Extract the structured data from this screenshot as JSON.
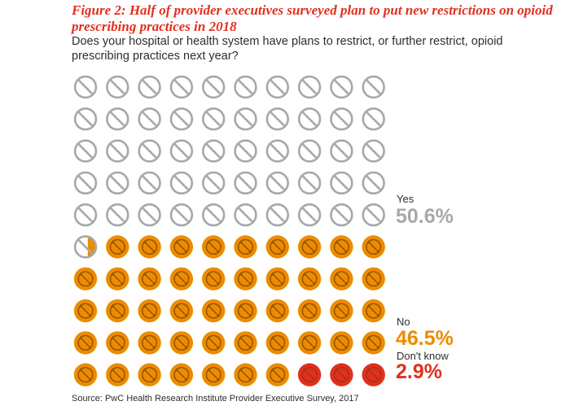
{
  "title": "Figure 2: Half of provider executives surveyed plan to put new restrictions on opioid prescribing practices in 2018",
  "subtitle": "Does your hospital or health system have plans to restrict, or further restrict, opioid prescribing practices next year?",
  "source": "Source: PwC Health Research Institute Provider Executive Survey, 2017",
  "colors": {
    "yes": "#a7a8aa",
    "no": "#eb8c00",
    "dont_know": "#e0301e",
    "title": "#e0301e"
  },
  "icon": "prohibition-sign-icon",
  "chart_data": {
    "type": "waffle",
    "grid": {
      "rows": 10,
      "cols": 10
    },
    "title": "Figure 2: Half of provider executives surveyed plan to put new restrictions on opioid prescribing practices in 2018",
    "series": [
      {
        "name": "Yes",
        "value": 50.6,
        "label": "50.6%"
      },
      {
        "name": "No",
        "value": 46.5,
        "label": "46.5%"
      },
      {
        "name": "Don't know",
        "value": 2.9,
        "label": "2.9%"
      }
    ]
  }
}
